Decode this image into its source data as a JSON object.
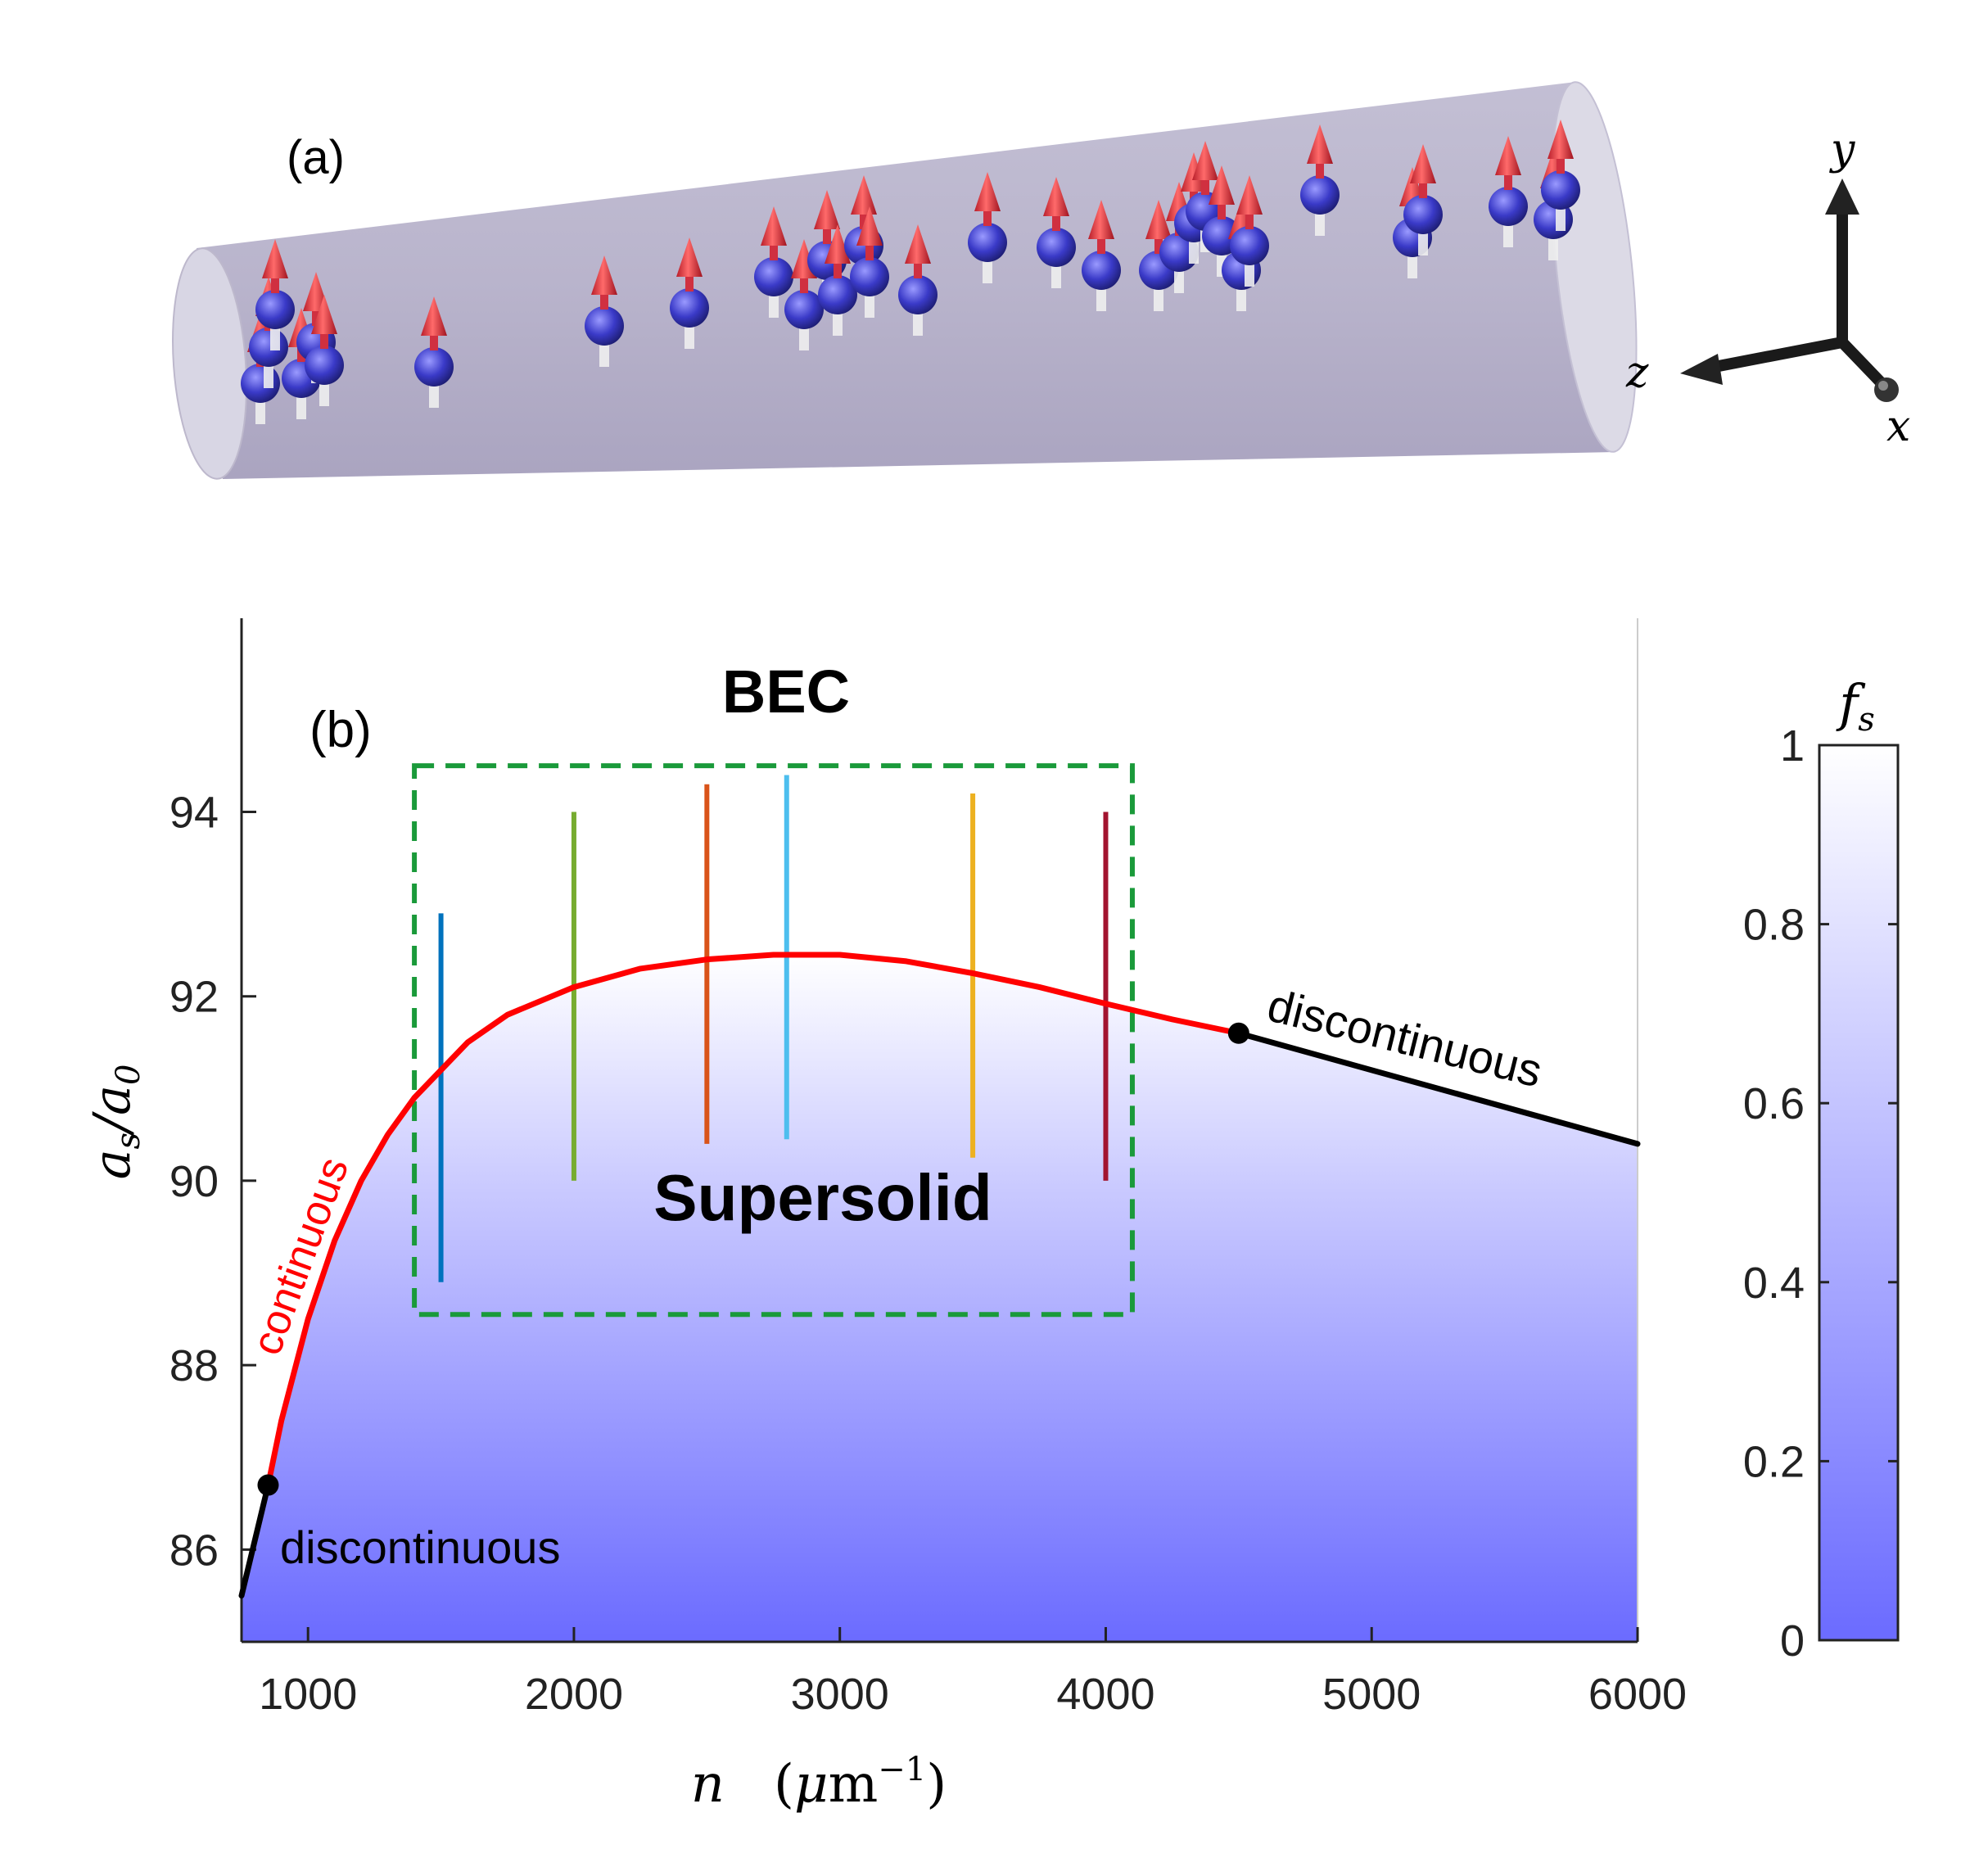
{
  "panel_a": {
    "label": "(a)",
    "axes": {
      "x": "x",
      "y": "y",
      "z": "z"
    },
    "icon": "cylinder-with-dipole-atoms-icon"
  },
  "panel_b": {
    "label": "(b)"
  },
  "chart_data": {
    "type": "line",
    "title": "",
    "xlabel": "n (μm⁻¹)",
    "ylabel": "a_s/a_0",
    "xlim": [
      750,
      6000
    ],
    "ylim": [
      85.0,
      96.1
    ],
    "xticks": [
      1000,
      2000,
      3000,
      4000,
      5000,
      6000
    ],
    "yticks": [
      86,
      88,
      90,
      92,
      94
    ],
    "xtick_labels": [
      "1000",
      "2000",
      "3000",
      "4000",
      "5000",
      "6000"
    ],
    "ytick_labels": [
      "86",
      "88",
      "90",
      "92",
      "94"
    ],
    "series": [
      {
        "name": "continuous",
        "color": "#ff0000",
        "x": [
          850,
          900,
          1000,
          1100,
          1200,
          1300,
          1400,
          1500,
          1600,
          1750,
          2000,
          2250,
          2500,
          2750,
          3000,
          3250,
          3500,
          3750,
          4000,
          4250,
          4500
        ],
        "y": [
          86.7,
          87.4,
          88.5,
          89.35,
          90.0,
          90.5,
          90.9,
          91.2,
          91.5,
          91.8,
          92.1,
          92.3,
          92.4,
          92.45,
          92.45,
          92.38,
          92.25,
          92.1,
          91.92,
          91.75,
          91.6
        ]
      },
      {
        "name": "discontinuous (low n)",
        "color": "#000000",
        "x": [
          750,
          850
        ],
        "y": [
          85.5,
          86.7
        ]
      },
      {
        "name": "discontinuous (high n)",
        "color": "#000000",
        "x": [
          4500,
          6000
        ],
        "y": [
          91.6,
          90.4
        ]
      }
    ],
    "endpoints": [
      {
        "x": 850,
        "y": 86.7
      },
      {
        "x": 4500,
        "y": 91.6
      }
    ],
    "vertical_segments": [
      {
        "x": 1500,
        "y0": 88.9,
        "y1": 92.9,
        "color": "#0072bd"
      },
      {
        "x": 2000,
        "y0": 90.0,
        "y1": 94.0,
        "color": "#77ac30"
      },
      {
        "x": 2500,
        "y0": 90.4,
        "y1": 94.3,
        "color": "#d95319"
      },
      {
        "x": 2800,
        "y0": 90.45,
        "y1": 94.4,
        "color": "#4dbeee"
      },
      {
        "x": 3500,
        "y0": 90.25,
        "y1": 94.2,
        "color": "#edb120"
      },
      {
        "x": 4000,
        "y0": 90.0,
        "y1": 94.0,
        "color": "#a2142f"
      }
    ],
    "dashed_box": {
      "x0": 1400,
      "x1": 4100,
      "y0": 88.55,
      "y1": 94.5,
      "color": "#1a9a3a"
    },
    "region_labels": {
      "top": "BEC",
      "bottom": "Supersolid",
      "continuous": "continuous",
      "discontinuous_low": "discontinuous",
      "discontinuous_high": "discontinuous"
    },
    "colorbar": {
      "label": "f_s",
      "range": [
        0,
        1
      ],
      "ticks": [
        0,
        0.2,
        0.4,
        0.6,
        0.8,
        1
      ],
      "tick_labels": [
        "0",
        "0.2",
        "0.4",
        "0.6",
        "0.8",
        "1"
      ],
      "color_low": "#6b6bff",
      "color_high": "#ffffff"
    }
  }
}
